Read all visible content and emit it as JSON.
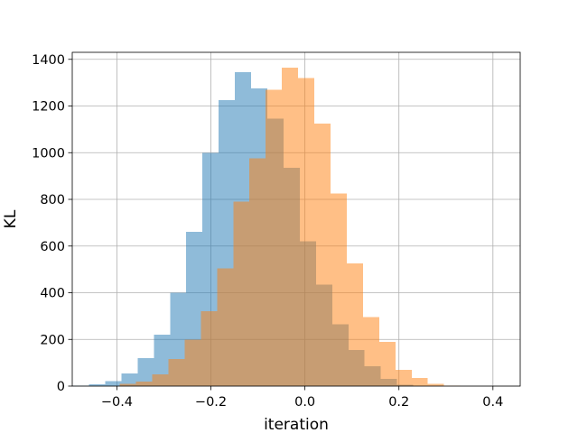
{
  "chart_data": {
    "type": "histogram",
    "title": "",
    "xlabel": "iteration",
    "ylabel": "KL",
    "xlim": [
      -0.495,
      0.458
    ],
    "ylim": [
      0,
      1430
    ],
    "xticks": [
      -0.4,
      -0.2,
      0.0,
      0.2,
      0.4
    ],
    "xtick_labels": [
      "−0.4",
      "−0.2",
      "0.0",
      "0.2",
      "0.4"
    ],
    "yticks": [
      0,
      200,
      400,
      600,
      800,
      1000,
      1200,
      1400
    ],
    "ytick_labels": [
      "0",
      "200",
      "400",
      "600",
      "800",
      "1000",
      "1200",
      "1400"
    ],
    "grid": true,
    "legend": "none",
    "overlap_color": "#c6996f",
    "series": [
      {
        "color": "#1f77b4",
        "alpha": 0.5,
        "bin_edges": [
          -0.494,
          -0.4595,
          -0.425,
          -0.3905,
          -0.356,
          -0.3215,
          -0.287,
          -0.2525,
          -0.218,
          -0.1835,
          -0.149,
          -0.1145,
          -0.08,
          -0.0455,
          -0.011,
          0.0235,
          0.058,
          0.0925,
          0.127,
          0.1615,
          0.196,
          0.2305
        ],
        "counts": [
          2,
          8,
          22,
          55,
          120,
          220,
          400,
          660,
          1000,
          1225,
          1345,
          1275,
          1145,
          935,
          620,
          435,
          265,
          155,
          85,
          30,
          5
        ]
      },
      {
        "color": "#ff7f0e",
        "alpha": 0.5,
        "bin_edges": [
          -0.394,
          -0.3595,
          -0.325,
          -0.2905,
          -0.256,
          -0.2215,
          -0.187,
          -0.1525,
          -0.118,
          -0.0835,
          -0.049,
          -0.0145,
          0.02,
          0.0545,
          0.089,
          0.1235,
          0.158,
          0.1925,
          0.227,
          0.2615,
          0.296,
          0.3305,
          0.365
        ],
        "counts": [
          10,
          20,
          50,
          115,
          200,
          320,
          505,
          790,
          975,
          1270,
          1365,
          1320,
          1125,
          825,
          525,
          295,
          190,
          70,
          35,
          10,
          2,
          0
        ]
      }
    ]
  }
}
